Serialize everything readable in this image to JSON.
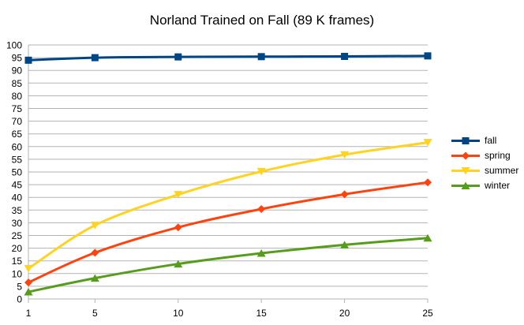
{
  "chart_data": {
    "type": "line",
    "title": "Norland Trained on Fall (89 K frames)",
    "xlabel": "",
    "ylabel": "",
    "x": [
      1,
      5,
      10,
      15,
      20,
      25
    ],
    "x_tick_labels": [
      "1",
      "5",
      "10",
      "15",
      "20",
      "25"
    ],
    "ylim": [
      0,
      100
    ],
    "y_ticks": [
      0,
      5,
      10,
      15,
      20,
      25,
      30,
      35,
      40,
      45,
      50,
      55,
      60,
      65,
      70,
      75,
      80,
      85,
      90,
      95,
      100
    ],
    "grid": "horizontal",
    "legend_position": "right",
    "series": [
      {
        "name": "fall",
        "color": "#004586",
        "marker": "square",
        "values": [
          94.0,
          95.0,
          95.3,
          95.4,
          95.5,
          95.7
        ]
      },
      {
        "name": "spring",
        "color": "#ff420e",
        "marker": "diamond",
        "values": [
          6.5,
          18.2,
          28.2,
          35.4,
          41.2,
          45.9
        ]
      },
      {
        "name": "summer",
        "color": "#ffd320",
        "marker": "triangle-down",
        "values": [
          12.0,
          29.0,
          41.1,
          50.2,
          56.8,
          61.6
        ]
      },
      {
        "name": "winter",
        "color": "#579d1c",
        "marker": "triangle-up",
        "values": [
          2.8,
          8.2,
          13.8,
          18.0,
          21.3,
          24.0
        ]
      }
    ]
  }
}
